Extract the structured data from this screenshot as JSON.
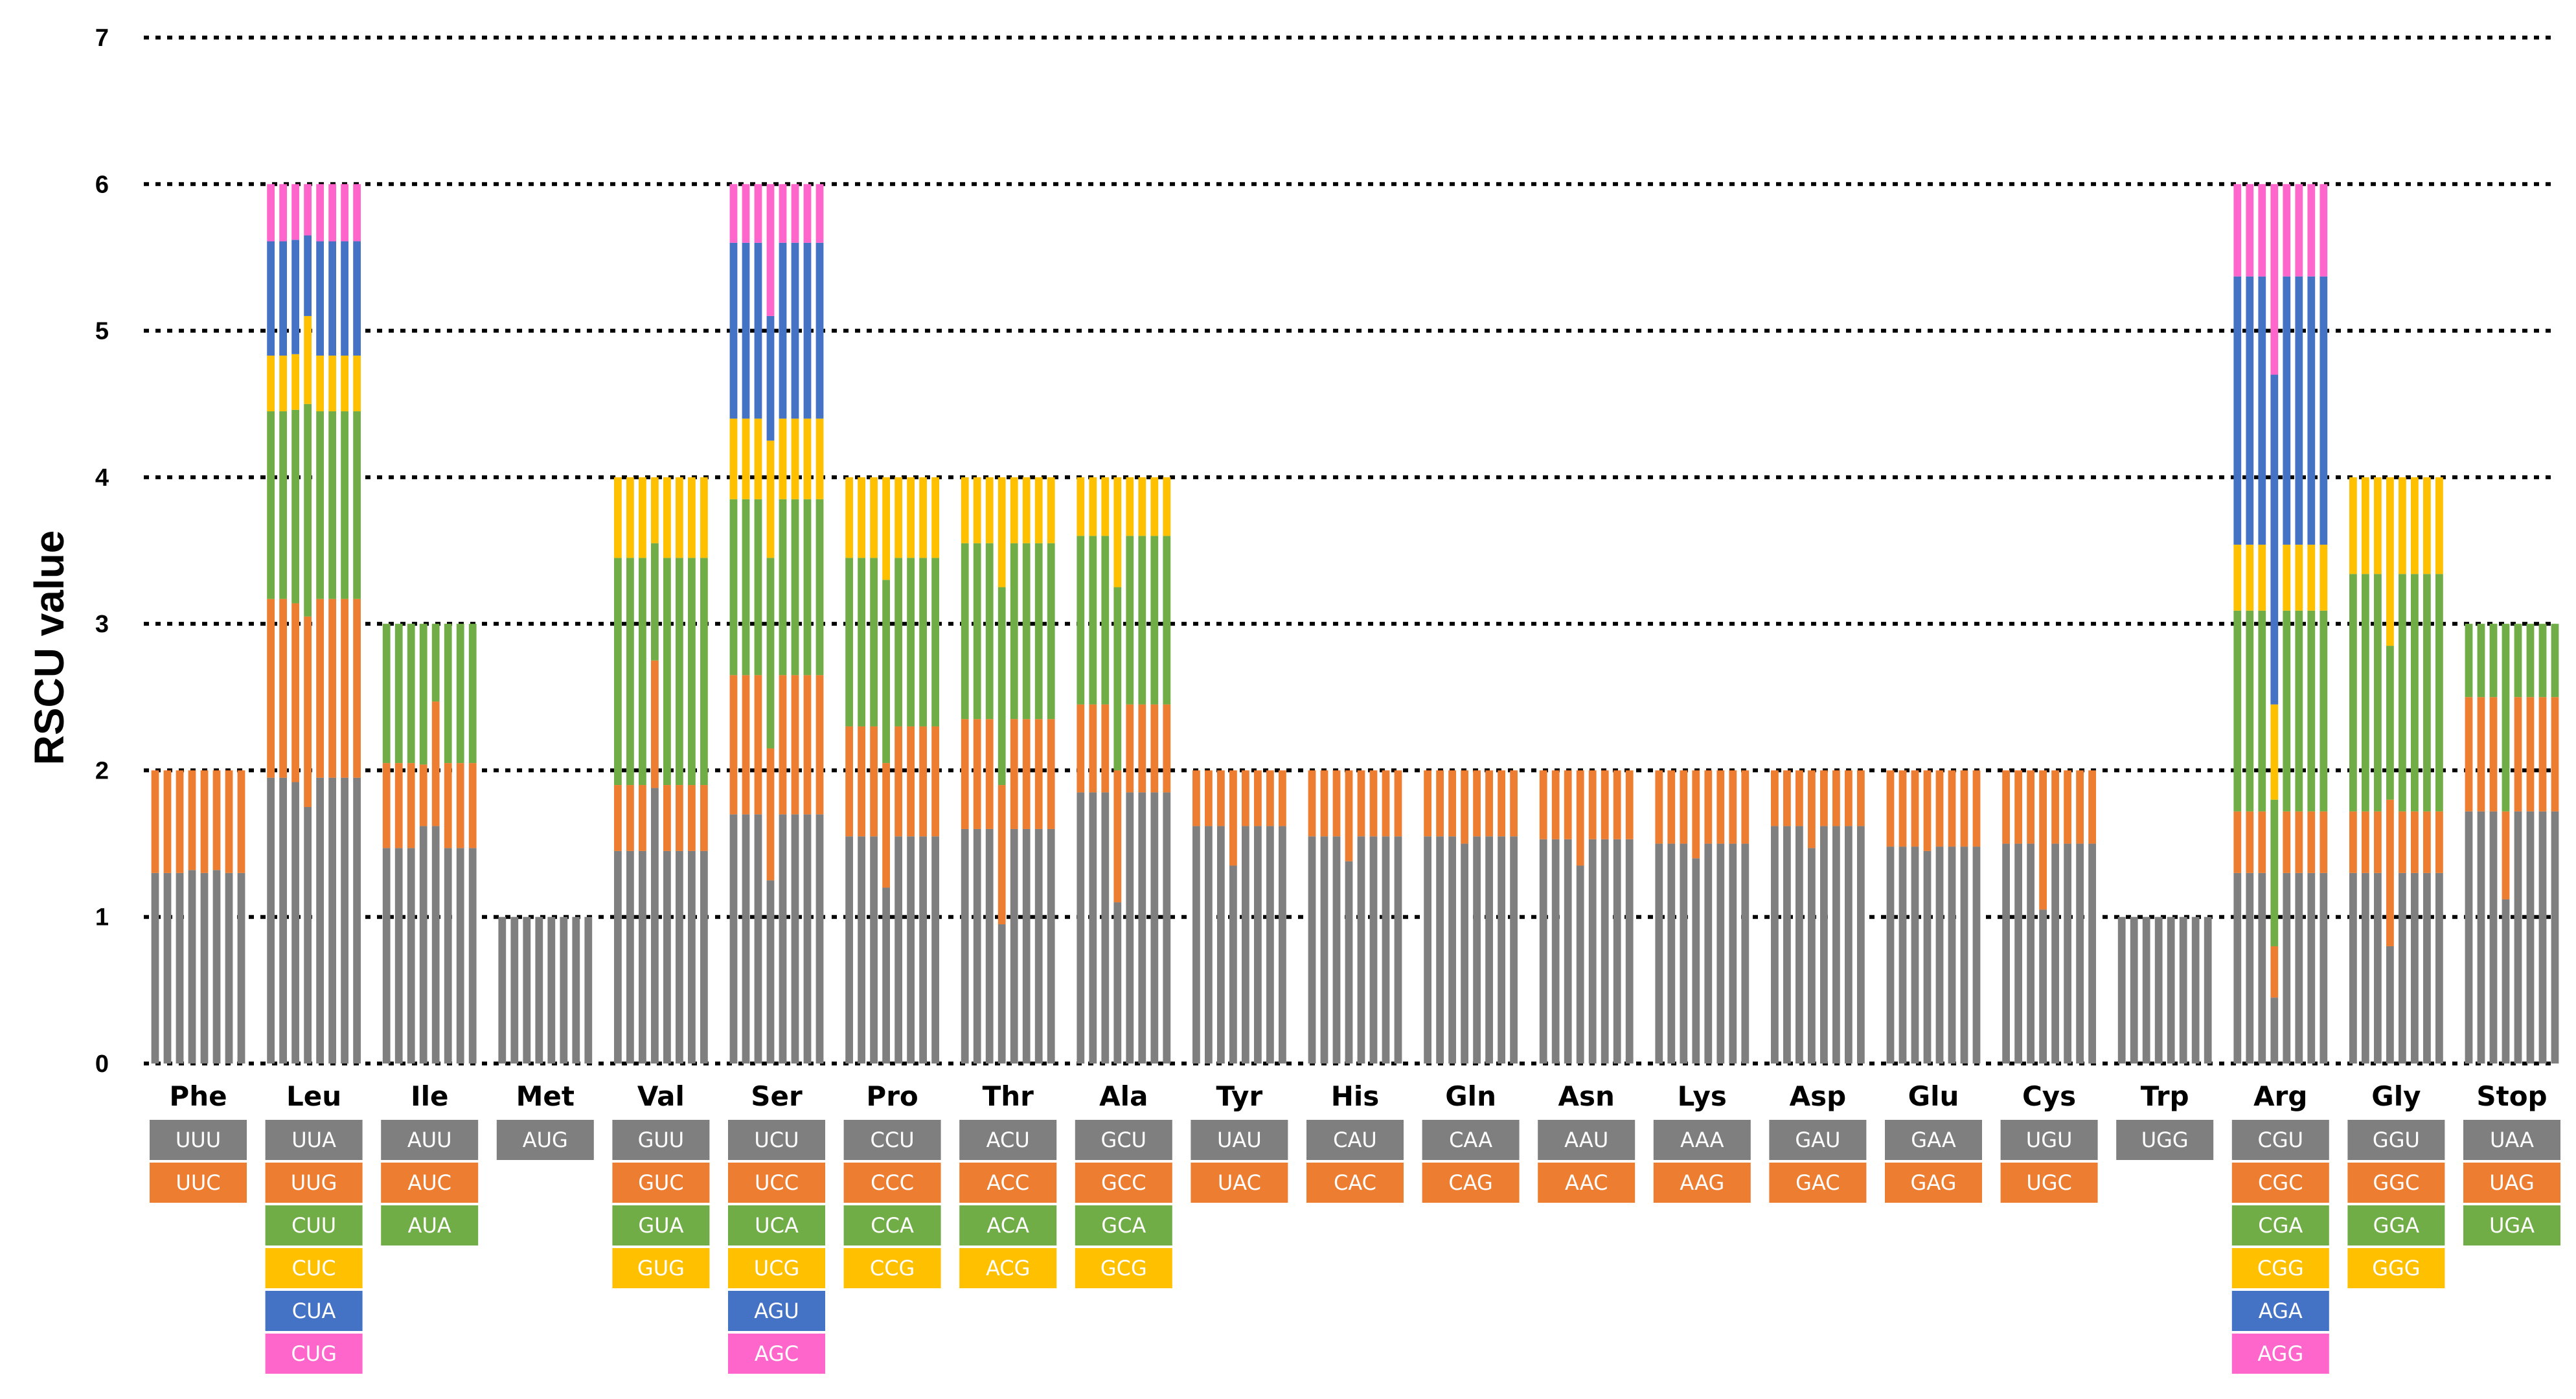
{
  "chart_data": {
    "type": "bar",
    "subtype": "stacked",
    "title": "",
    "xlabel": "",
    "ylabel": "RSCU value",
    "ylim": [
      0,
      7
    ],
    "yticks": [
      "0",
      "1",
      "2",
      "3",
      "4",
      "5",
      "6",
      "7"
    ],
    "grid": "dotted horizontal at major ticks",
    "bars_per_group": 8,
    "codon_colors": [
      "#7f7f7f",
      "#ed7d31",
      "#70ad47",
      "#ffc000",
      "#4472c4",
      "#ff66cc"
    ],
    "groups": [
      {
        "name": "Phe",
        "codons": [
          "UUU",
          "UUC"
        ],
        "bars": [
          [
            1.3,
            0.7
          ],
          [
            1.3,
            0.7
          ],
          [
            1.3,
            0.7
          ],
          [
            1.32,
            0.68
          ],
          [
            1.3,
            0.7
          ],
          [
            1.32,
            0.68
          ],
          [
            1.3,
            0.7
          ],
          [
            1.3,
            0.7
          ]
        ]
      },
      {
        "name": "Leu",
        "codons": [
          "UUA",
          "UUG",
          "CUU",
          "CUC",
          "CUA",
          "CUG"
        ],
        "bars": [
          [
            1.95,
            1.22,
            1.28,
            0.38,
            0.78,
            0.39
          ],
          [
            1.95,
            1.22,
            1.28,
            0.38,
            0.78,
            0.39
          ],
          [
            1.92,
            1.22,
            1.32,
            0.38,
            0.78,
            0.38
          ],
          [
            1.75,
            1.3,
            1.45,
            0.6,
            0.55,
            0.35
          ],
          [
            1.95,
            1.22,
            1.28,
            0.38,
            0.78,
            0.39
          ],
          [
            1.95,
            1.22,
            1.28,
            0.38,
            0.78,
            0.39
          ],
          [
            1.95,
            1.22,
            1.28,
            0.38,
            0.78,
            0.39
          ],
          [
            1.95,
            1.22,
            1.28,
            0.38,
            0.78,
            0.39
          ]
        ]
      },
      {
        "name": "Ile",
        "codons": [
          "AUU",
          "AUC",
          "AUA"
        ],
        "bars": [
          [
            1.47,
            0.58,
            0.95
          ],
          [
            1.47,
            0.58,
            0.95
          ],
          [
            1.47,
            0.58,
            0.95
          ],
          [
            1.62,
            0.42,
            0.96
          ],
          [
            1.62,
            0.85,
            0.53
          ],
          [
            1.47,
            0.58,
            0.95
          ],
          [
            1.47,
            0.58,
            0.95
          ],
          [
            1.47,
            0.58,
            0.95
          ]
        ]
      },
      {
        "name": "Met",
        "codons": [
          "AUG"
        ],
        "bars": [
          [
            1
          ],
          [
            1
          ],
          [
            1
          ],
          [
            1
          ],
          [
            1
          ],
          [
            1
          ],
          [
            1
          ],
          [
            1
          ]
        ]
      },
      {
        "name": "Val",
        "codons": [
          "GUU",
          "GUC",
          "GUA",
          "GUG"
        ],
        "bars": [
          [
            1.45,
            0.45,
            1.55,
            0.55
          ],
          [
            1.45,
            0.45,
            1.55,
            0.55
          ],
          [
            1.45,
            0.45,
            1.55,
            0.55
          ],
          [
            1.88,
            0.87,
            0.8,
            0.45
          ],
          [
            1.45,
            0.45,
            1.55,
            0.55
          ],
          [
            1.45,
            0.45,
            1.55,
            0.55
          ],
          [
            1.45,
            0.45,
            1.55,
            0.55
          ],
          [
            1.45,
            0.45,
            1.55,
            0.55
          ]
        ]
      },
      {
        "name": "Ser",
        "codons": [
          "UCU",
          "UCC",
          "UCA",
          "UCG",
          "AGU",
          "AGC"
        ],
        "bars": [
          [
            1.7,
            0.95,
            1.2,
            0.55,
            1.2,
            0.4
          ],
          [
            1.7,
            0.95,
            1.2,
            0.55,
            1.2,
            0.4
          ],
          [
            1.7,
            0.95,
            1.2,
            0.55,
            1.2,
            0.4
          ],
          [
            1.25,
            0.9,
            1.3,
            0.8,
            0.85,
            0.9
          ],
          [
            1.7,
            0.95,
            1.2,
            0.55,
            1.2,
            0.4
          ],
          [
            1.7,
            0.95,
            1.2,
            0.55,
            1.2,
            0.4
          ],
          [
            1.7,
            0.95,
            1.2,
            0.55,
            1.2,
            0.4
          ],
          [
            1.7,
            0.95,
            1.2,
            0.55,
            1.2,
            0.4
          ]
        ]
      },
      {
        "name": "Pro",
        "codons": [
          "CCU",
          "CCC",
          "CCA",
          "CCG"
        ],
        "bars": [
          [
            1.55,
            0.75,
            1.15,
            0.55
          ],
          [
            1.55,
            0.75,
            1.15,
            0.55
          ],
          [
            1.55,
            0.75,
            1.15,
            0.55
          ],
          [
            1.2,
            0.85,
            1.25,
            0.7
          ],
          [
            1.55,
            0.75,
            1.15,
            0.55
          ],
          [
            1.55,
            0.75,
            1.15,
            0.55
          ],
          [
            1.55,
            0.75,
            1.15,
            0.55
          ],
          [
            1.55,
            0.75,
            1.15,
            0.55
          ]
        ]
      },
      {
        "name": "Thr",
        "codons": [
          "ACU",
          "ACC",
          "ACA",
          "ACG"
        ],
        "bars": [
          [
            1.6,
            0.75,
            1.2,
            0.45
          ],
          [
            1.6,
            0.75,
            1.2,
            0.45
          ],
          [
            1.6,
            0.75,
            1.2,
            0.45
          ],
          [
            0.95,
            0.95,
            1.35,
            0.75
          ],
          [
            1.6,
            0.75,
            1.2,
            0.45
          ],
          [
            1.6,
            0.75,
            1.2,
            0.45
          ],
          [
            1.6,
            0.75,
            1.2,
            0.45
          ],
          [
            1.6,
            0.75,
            1.2,
            0.45
          ]
        ]
      },
      {
        "name": "Ala",
        "codons": [
          "GCU",
          "GCC",
          "GCA",
          "GCG"
        ],
        "bars": [
          [
            1.85,
            0.6,
            1.15,
            0.4
          ],
          [
            1.85,
            0.6,
            1.15,
            0.4
          ],
          [
            1.85,
            0.6,
            1.15,
            0.4
          ],
          [
            1.1,
            0.9,
            1.25,
            0.75
          ],
          [
            1.85,
            0.6,
            1.15,
            0.4
          ],
          [
            1.85,
            0.6,
            1.15,
            0.4
          ],
          [
            1.85,
            0.6,
            1.15,
            0.4
          ],
          [
            1.85,
            0.6,
            1.15,
            0.4
          ]
        ]
      },
      {
        "name": "Tyr",
        "codons": [
          "UAU",
          "UAC"
        ],
        "bars": [
          [
            1.62,
            0.38
          ],
          [
            1.62,
            0.38
          ],
          [
            1.62,
            0.38
          ],
          [
            1.35,
            0.65
          ],
          [
            1.62,
            0.38
          ],
          [
            1.62,
            0.38
          ],
          [
            1.62,
            0.38
          ],
          [
            1.62,
            0.38
          ]
        ]
      },
      {
        "name": "His",
        "codons": [
          "CAU",
          "CAC"
        ],
        "bars": [
          [
            1.55,
            0.45
          ],
          [
            1.55,
            0.45
          ],
          [
            1.55,
            0.45
          ],
          [
            1.38,
            0.62
          ],
          [
            1.55,
            0.45
          ],
          [
            1.55,
            0.45
          ],
          [
            1.55,
            0.45
          ],
          [
            1.55,
            0.45
          ]
        ]
      },
      {
        "name": "Gln",
        "codons": [
          "CAA",
          "CAG"
        ],
        "bars": [
          [
            1.55,
            0.45
          ],
          [
            1.55,
            0.45
          ],
          [
            1.55,
            0.45
          ],
          [
            1.5,
            0.5
          ],
          [
            1.55,
            0.45
          ],
          [
            1.55,
            0.45
          ],
          [
            1.55,
            0.45
          ],
          [
            1.55,
            0.45
          ]
        ]
      },
      {
        "name": "Asn",
        "codons": [
          "AAU",
          "AAC"
        ],
        "bars": [
          [
            1.53,
            0.47
          ],
          [
            1.53,
            0.47
          ],
          [
            1.53,
            0.47
          ],
          [
            1.35,
            0.65
          ],
          [
            1.53,
            0.47
          ],
          [
            1.53,
            0.47
          ],
          [
            1.53,
            0.47
          ],
          [
            1.53,
            0.47
          ]
        ]
      },
      {
        "name": "Lys",
        "codons": [
          "AAA",
          "AAG"
        ],
        "bars": [
          [
            1.5,
            0.5
          ],
          [
            1.5,
            0.5
          ],
          [
            1.5,
            0.5
          ],
          [
            1.4,
            0.6
          ],
          [
            1.5,
            0.5
          ],
          [
            1.5,
            0.5
          ],
          [
            1.5,
            0.5
          ],
          [
            1.5,
            0.5
          ]
        ]
      },
      {
        "name": "Asp",
        "codons": [
          "GAU",
          "GAC"
        ],
        "bars": [
          [
            1.62,
            0.38
          ],
          [
            1.62,
            0.38
          ],
          [
            1.62,
            0.38
          ],
          [
            1.47,
            0.53
          ],
          [
            1.62,
            0.38
          ],
          [
            1.62,
            0.38
          ],
          [
            1.62,
            0.38
          ],
          [
            1.62,
            0.38
          ]
        ]
      },
      {
        "name": "Glu",
        "codons": [
          "GAA",
          "GAG"
        ],
        "bars": [
          [
            1.48,
            0.52
          ],
          [
            1.48,
            0.52
          ],
          [
            1.48,
            0.52
          ],
          [
            1.45,
            0.55
          ],
          [
            1.48,
            0.52
          ],
          [
            1.48,
            0.52
          ],
          [
            1.48,
            0.52
          ],
          [
            1.48,
            0.52
          ]
        ]
      },
      {
        "name": "Cys",
        "codons": [
          "UGU",
          "UGC"
        ],
        "bars": [
          [
            1.5,
            0.5
          ],
          [
            1.5,
            0.5
          ],
          [
            1.5,
            0.5
          ],
          [
            1.05,
            0.95
          ],
          [
            1.5,
            0.5
          ],
          [
            1.5,
            0.5
          ],
          [
            1.5,
            0.5
          ],
          [
            1.5,
            0.5
          ]
        ]
      },
      {
        "name": "Trp",
        "codons": [
          "UGG"
        ],
        "bars": [
          [
            1
          ],
          [
            1
          ],
          [
            1
          ],
          [
            1
          ],
          [
            1
          ],
          [
            1
          ],
          [
            1
          ],
          [
            1
          ]
        ]
      },
      {
        "name": "Arg",
        "codons": [
          "CGU",
          "CGC",
          "CGA",
          "CGG",
          "AGA",
          "AGG"
        ],
        "bars": [
          [
            1.3,
            0.42,
            1.37,
            0.45,
            1.83,
            0.63
          ],
          [
            1.3,
            0.42,
            1.37,
            0.45,
            1.83,
            0.63
          ],
          [
            1.3,
            0.42,
            1.37,
            0.45,
            1.83,
            0.63
          ],
          [
            0.45,
            0.35,
            1.0,
            0.65,
            2.25,
            1.3
          ],
          [
            1.3,
            0.42,
            1.37,
            0.45,
            1.83,
            0.63
          ],
          [
            1.3,
            0.42,
            1.37,
            0.45,
            1.83,
            0.63
          ],
          [
            1.3,
            0.42,
            1.37,
            0.45,
            1.83,
            0.63
          ],
          [
            1.3,
            0.42,
            1.37,
            0.45,
            1.83,
            0.63
          ]
        ]
      },
      {
        "name": "Gly",
        "codons": [
          "GGU",
          "GGC",
          "GGA",
          "GGG"
        ],
        "bars": [
          [
            1.3,
            0.42,
            1.62,
            0.66
          ],
          [
            1.3,
            0.42,
            1.62,
            0.66
          ],
          [
            1.3,
            0.42,
            1.62,
            0.66
          ],
          [
            0.8,
            1.0,
            1.05,
            1.15
          ],
          [
            1.3,
            0.42,
            1.62,
            0.66
          ],
          [
            1.3,
            0.42,
            1.62,
            0.66
          ],
          [
            1.3,
            0.42,
            1.62,
            0.66
          ],
          [
            1.3,
            0.42,
            1.62,
            0.66
          ]
        ]
      },
      {
        "name": "Stop",
        "codons": [
          "UAA",
          "UAG",
          "UGA"
        ],
        "bars": [
          [
            1.72,
            0.78,
            0.5
          ],
          [
            1.72,
            0.78,
            0.5
          ],
          [
            1.72,
            0.78,
            0.5
          ],
          [
            1.12,
            0.6,
            1.28
          ],
          [
            1.72,
            0.78,
            0.5
          ],
          [
            1.72,
            0.78,
            0.5
          ],
          [
            1.72,
            0.78,
            0.5
          ],
          [
            1.72,
            0.78,
            0.5
          ]
        ]
      }
    ]
  }
}
